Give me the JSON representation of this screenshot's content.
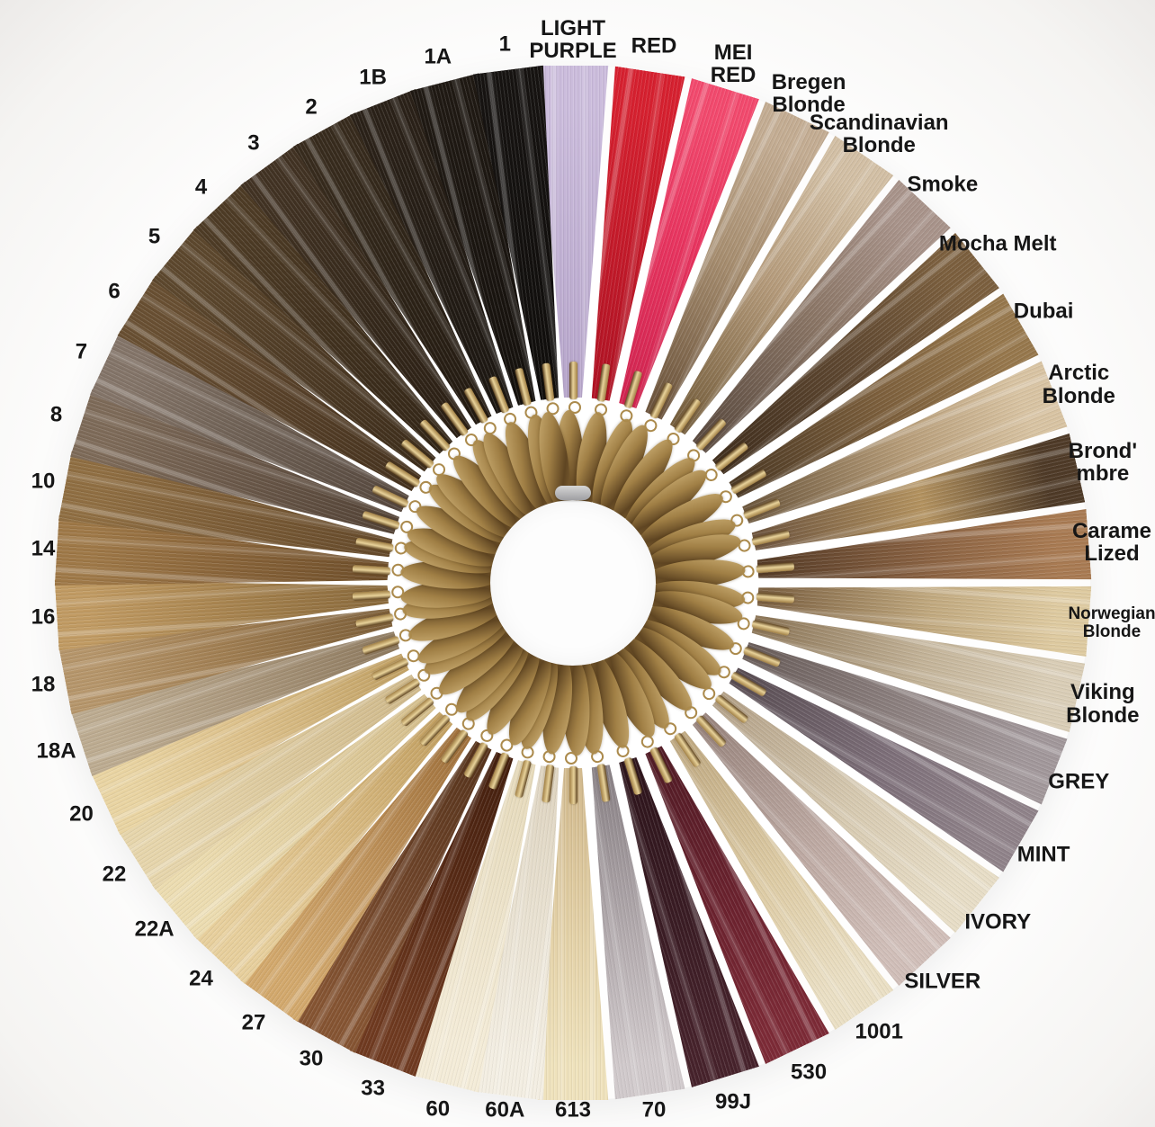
{
  "page": {
    "background": "#ffffff",
    "label_color": "#161616"
  },
  "wheel": {
    "description": "hair extension color ring, 46 swatches fanned in a circle with gold tags and crimp ferrules at center",
    "hardware": {
      "gold_light": "#cdb076",
      "gold_mid": "#a07f45",
      "gold_mid2": "#8a6a38",
      "gold_dark": "#5f4522",
      "ferrule_light": "#e8d29a",
      "ring_gold": "#ab8a4c",
      "clasp_silver_light": "#d6d6d6",
      "clasp_silver_dark": "#9f9fa2"
    },
    "swatches": [
      {
        "id": "light-purple",
        "lines": [
          "LIGHT",
          "PURPLE"
        ],
        "root": "#b7a6cb",
        "mid": null,
        "tip": "#cbbcdc"
      },
      {
        "id": "red",
        "lines": [
          "RED"
        ],
        "root": "#b01324",
        "mid": null,
        "tip": "#d6202f"
      },
      {
        "id": "mei-red",
        "lines": [
          "MEI",
          "RED"
        ],
        "root": "#d22551",
        "mid": "#e8345f",
        "tip": "#f2496d"
      },
      {
        "id": "bregen-blonde",
        "lines": [
          "Bregen",
          "Blonde"
        ],
        "root": "#6d553d",
        "mid": "#a68d6f",
        "tip": "#c3ac92"
      },
      {
        "id": "scandinavian-blonde",
        "lines": [
          "Scandinavian",
          "Blonde"
        ],
        "root": "#77603f",
        "mid": "#b49a7a",
        "tip": "#d2bfa4"
      },
      {
        "id": "smoke",
        "lines": [
          "Smoke"
        ],
        "root": "#5c4c41",
        "mid": "#8a7565",
        "tip": "#a8938a"
      },
      {
        "id": "mocha-melt",
        "lines": [
          "Mocha Melt"
        ],
        "root": "#42301f",
        "mid": "#5f4831",
        "tip": "#7b5f3e"
      },
      {
        "id": "dubai",
        "lines": [
          "Dubai"
        ],
        "root": "#4e3b26",
        "mid": "#7c5f3c",
        "tip": "#96774c"
      },
      {
        "id": "arctic-blonde",
        "lines": [
          "Arctic",
          "Blonde"
        ],
        "root": "#6f5a40",
        "mid": "#b69c78",
        "tip": "#d8c3a2"
      },
      {
        "id": "brond-mbre",
        "lines": [
          "Brond'",
          "mbre"
        ],
        "root": "#705740",
        "mid": "#b3925f",
        "tip": "#4e3a27"
      },
      {
        "id": "carame-lized",
        "lines": [
          "Carame",
          "Lized"
        ],
        "root": "#573d28",
        "mid": "#8a6242",
        "tip": "#a87a52"
      },
      {
        "id": "norwegian-blonde",
        "lines": [
          "Norwegian",
          "Blonde"
        ],
        "root": "#7c6142",
        "mid": "#c0a87e",
        "tip": "#decaa0",
        "small": true
      },
      {
        "id": "viking-blonde",
        "lines": [
          "Viking",
          "Blonde"
        ],
        "root": "#8d7759",
        "mid": "#c2b297",
        "tip": "#d9cdb6"
      },
      {
        "id": "grey",
        "lines": [
          "GREY"
        ],
        "root": "#6b5f5c",
        "mid": "#8d8180",
        "tip": "#a1979a"
      },
      {
        "id": "mint",
        "lines": [
          "MINT"
        ],
        "root": "#5a4e54",
        "mid": "#7c6e78",
        "tip": "#8f8289"
      },
      {
        "id": "ivory",
        "lines": [
          "IVORY"
        ],
        "root": "#b4a289",
        "mid": "#d6c9b0",
        "tip": "#e7ddc6"
      },
      {
        "id": "silver",
        "lines": [
          "SILVER"
        ],
        "root": "#9a867f",
        "mid": "#bda9a2",
        "tip": "#d0beb8"
      },
      {
        "id": "1001",
        "lines": [
          "1001"
        ],
        "root": "#c0aa83",
        "mid": "#ddcba4",
        "tip": "#eadfc4"
      },
      {
        "id": "530",
        "lines": [
          "530"
        ],
        "root": "#521c26",
        "mid": "#6b222e",
        "tip": "#7c2a36"
      },
      {
        "id": "99j",
        "lines": [
          "99J"
        ],
        "root": "#2e151c",
        "mid": "#3a1c24",
        "tip": "#46222b"
      },
      {
        "id": "70",
        "lines": [
          "70"
        ],
        "root": "#8a8286",
        "mid": "#b3abae",
        "tip": "#d0c9cb"
      },
      {
        "id": "613",
        "lines": [
          "613"
        ],
        "root": "#d2ba8e",
        "mid": "#e4d2a8",
        "tip": "#efe2bc"
      },
      {
        "id": "60a",
        "lines": [
          "60A"
        ],
        "root": "#ded4c0",
        "mid": null,
        "tip": "#f3eee2"
      },
      {
        "id": "60",
        "lines": [
          "60"
        ],
        "root": "#e6dabb",
        "mid": null,
        "tip": "#f4ecd8"
      },
      {
        "id": "33",
        "lines": [
          "33"
        ],
        "root": "#45200f",
        "mid": "#5c2d17",
        "tip": "#6f3a20"
      },
      {
        "id": "30",
        "lines": [
          "30"
        ],
        "root": "#58351d",
        "mid": "#70452a",
        "tip": "#855432"
      },
      {
        "id": "27",
        "lines": [
          "27"
        ],
        "root": "#a1723d",
        "mid": "#c0945c",
        "tip": "#d2a86c"
      },
      {
        "id": "24",
        "lines": [
          "24"
        ],
        "root": "#c3a163",
        "mid": "#dbbd85",
        "tip": "#e7cf9c"
      },
      {
        "id": "22a",
        "lines": [
          "22A"
        ],
        "root": "#d5bf8d",
        "mid": null,
        "tip": "#ecdcb0"
      },
      {
        "id": "22",
        "lines": [
          "22"
        ],
        "root": "#d0ba8c",
        "mid": null,
        "tip": "#e6d5ab"
      },
      {
        "id": "20",
        "lines": [
          "20"
        ],
        "root": "#c2a266",
        "mid": "#dcc08a",
        "tip": "#e9d4a2"
      },
      {
        "id": "18a",
        "lines": [
          "18A"
        ],
        "root": "#8f7b60",
        "mid": "#ab987d",
        "tip": "#bcab90"
      },
      {
        "id": "18",
        "lines": [
          "18"
        ],
        "root": "#7e603a",
        "mid": "#a07e52",
        "tip": "#b5956a"
      },
      {
        "id": "16",
        "lines": [
          "16"
        ],
        "root": "#8a6a3c",
        "mid": "#a98550",
        "tip": "#c09a62"
      },
      {
        "id": "14",
        "lines": [
          "14"
        ],
        "root": "#6f4f2b",
        "mid": "#8a653a",
        "tip": "#9e7847"
      },
      {
        "id": "10",
        "lines": [
          "10"
        ],
        "root": "#654a2b",
        "mid": "#7d5e38",
        "tip": "#8f6e42"
      },
      {
        "id": "8",
        "lines": [
          "8"
        ],
        "root": "#544437",
        "mid": "#6b594a",
        "tip": "#7d6a58"
      },
      {
        "id": "7",
        "lines": [
          "7"
        ],
        "root": "#57493f",
        "mid": "#6e6054",
        "tip": "#837468"
      },
      {
        "id": "6",
        "lines": [
          "6"
        ],
        "root": "#46331f",
        "mid": "#59422a",
        "tip": "#684f32"
      },
      {
        "id": "5",
        "lines": [
          "5"
        ],
        "root": "#3e2e1c",
        "mid": "#4f3c26",
        "tip": "#5c472d"
      },
      {
        "id": "4",
        "lines": [
          "4"
        ],
        "root": "#342718",
        "mid": "#42321f",
        "tip": "#4d3b25"
      },
      {
        "id": "3",
        "lines": [
          "3"
        ],
        "root": "#2b2015",
        "mid": "#372a1c",
        "tip": "#413223"
      },
      {
        "id": "2",
        "lines": [
          "2"
        ],
        "root": "#241b12",
        "mid": "#2e2418",
        "tip": "#372b1d"
      },
      {
        "id": "1b",
        "lines": [
          "1B"
        ],
        "root": "#1c1712",
        "mid": null,
        "tip": "#2a2118"
      },
      {
        "id": "1a",
        "lines": [
          "1A"
        ],
        "root": "#15110d",
        "mid": null,
        "tip": "#1f1913"
      },
      {
        "id": "1",
        "lines": [
          "1"
        ],
        "root": "#100e0c",
        "mid": null,
        "tip": "#161311"
      }
    ]
  }
}
